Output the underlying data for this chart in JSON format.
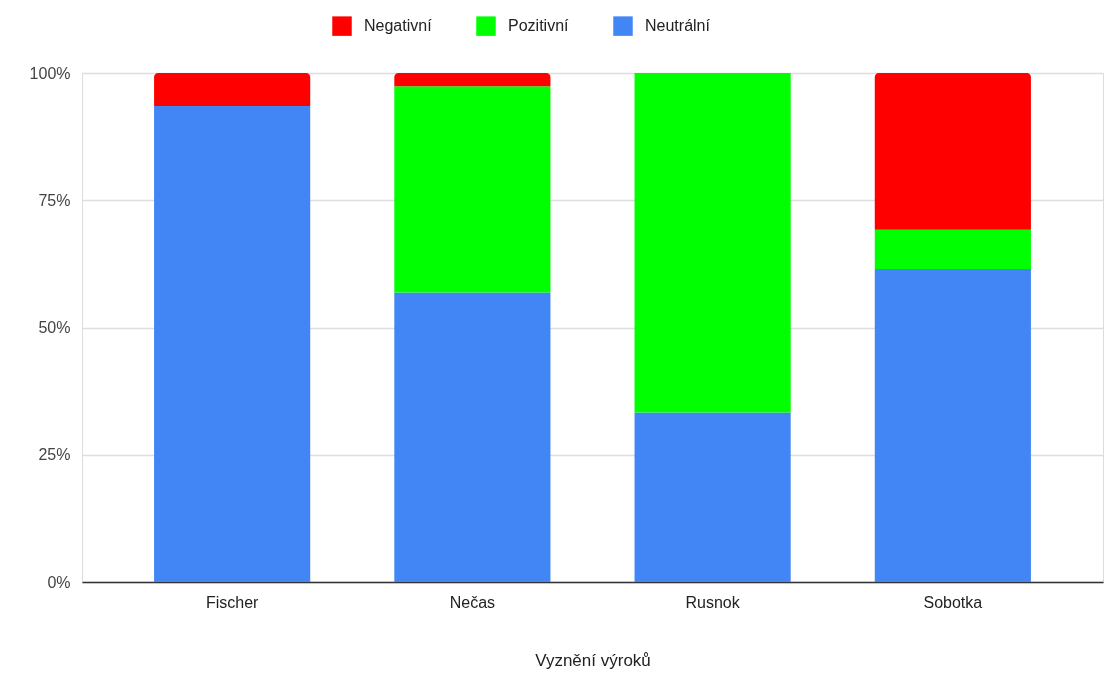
{
  "chart_data": {
    "type": "bar",
    "stacked": true,
    "xlabel": "Vyznění výroků",
    "categories": [
      "Fischer",
      "Nečas",
      "Rusnok",
      "Sobotka"
    ],
    "series": [
      {
        "name": "Neutrální",
        "color": "#4285f4",
        "values": [
          93.5,
          56.9,
          33.3,
          61.5
        ]
      },
      {
        "name": "Pozitivní",
        "color": "#00ff00",
        "values": [
          0,
          40.5,
          66.7,
          7.7
        ]
      },
      {
        "name": "Negativní",
        "color": "#ff0000",
        "values": [
          6.5,
          2.6,
          0,
          30.8
        ]
      }
    ],
    "ylim": [
      0,
      100
    ],
    "yticks": [
      {
        "value": 0,
        "label": "0%"
      },
      {
        "value": 25,
        "label": "25%"
      },
      {
        "value": 50,
        "label": "50%"
      },
      {
        "value": 75,
        "label": "75%"
      },
      {
        "value": 100,
        "label": "100%"
      }
    ],
    "grid": "y",
    "legend": "top"
  }
}
